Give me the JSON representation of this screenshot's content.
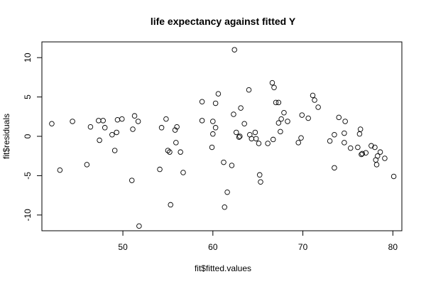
{
  "chart_data": {
    "type": "scatter",
    "title": "life expectancy against fitted Y",
    "xlabel": "fit$fitted.values",
    "ylabel": "fit$residuals",
    "xlim": [
      41,
      81
    ],
    "ylim": [
      -12,
      12
    ],
    "xticks": [
      50,
      60,
      70,
      80
    ],
    "yticks": [
      -10,
      -5,
      0,
      5,
      10
    ],
    "grid": false,
    "legend": "none",
    "marker": "open-circle",
    "points": [
      [
        42.1,
        1.6
      ],
      [
        43.0,
        -4.3
      ],
      [
        44.4,
        1.9
      ],
      [
        46.0,
        -3.6
      ],
      [
        46.4,
        1.2
      ],
      [
        47.3,
        2.0
      ],
      [
        47.4,
        -0.5
      ],
      [
        47.8,
        2.0
      ],
      [
        48.0,
        1.1
      ],
      [
        48.8,
        0.2
      ],
      [
        49.1,
        -1.8
      ],
      [
        49.3,
        0.5
      ],
      [
        49.4,
        2.1
      ],
      [
        49.9,
        2.2
      ],
      [
        51.0,
        -5.6
      ],
      [
        51.1,
        0.9
      ],
      [
        51.3,
        2.6
      ],
      [
        51.7,
        1.9
      ],
      [
        51.8,
        -11.4
      ],
      [
        54.1,
        -4.2
      ],
      [
        54.3,
        1.1
      ],
      [
        54.8,
        2.2
      ],
      [
        55.0,
        -1.8
      ],
      [
        55.2,
        -2.0
      ],
      [
        55.3,
        -8.7
      ],
      [
        55.8,
        0.8
      ],
      [
        55.9,
        -0.8
      ],
      [
        56.0,
        1.2
      ],
      [
        56.4,
        -2.0
      ],
      [
        56.7,
        -4.6
      ],
      [
        58.8,
        4.4
      ],
      [
        58.8,
        2.0
      ],
      [
        59.9,
        -1.4
      ],
      [
        60.0,
        0.3
      ],
      [
        60.0,
        1.9
      ],
      [
        60.3,
        4.2
      ],
      [
        60.3,
        1.1
      ],
      [
        60.6,
        5.4
      ],
      [
        61.2,
        -3.3
      ],
      [
        61.3,
        -9.0
      ],
      [
        61.6,
        -7.1
      ],
      [
        62.1,
        -3.7
      ],
      [
        62.3,
        2.8
      ],
      [
        62.4,
        11.0
      ],
      [
        62.6,
        0.5
      ],
      [
        62.9,
        -0.1
      ],
      [
        63.0,
        0.0
      ],
      [
        63.1,
        3.6
      ],
      [
        63.5,
        1.6
      ],
      [
        64.0,
        5.9
      ],
      [
        64.1,
        0.2
      ],
      [
        64.3,
        -0.3
      ],
      [
        64.7,
        0.5
      ],
      [
        64.8,
        -0.3
      ],
      [
        65.1,
        -0.9
      ],
      [
        65.2,
        -4.9
      ],
      [
        65.3,
        -5.8
      ],
      [
        66.1,
        -0.9
      ],
      [
        66.6,
        6.8
      ],
      [
        66.7,
        -0.4
      ],
      [
        66.8,
        6.2
      ],
      [
        67.0,
        4.3
      ],
      [
        67.3,
        4.3
      ],
      [
        67.3,
        1.7
      ],
      [
        67.6,
        2.2
      ],
      [
        67.9,
        3.0
      ],
      [
        68.3,
        1.9
      ],
      [
        67.5,
        0.6
      ],
      [
        69.5,
        -0.8
      ],
      [
        69.8,
        -0.2
      ],
      [
        69.9,
        2.7
      ],
      [
        70.6,
        2.3
      ],
      [
        71.1,
        5.2
      ],
      [
        71.3,
        4.6
      ],
      [
        71.7,
        3.7
      ],
      [
        73.0,
        -0.6
      ],
      [
        73.5,
        0.2
      ],
      [
        73.5,
        -4.0
      ],
      [
        74.0,
        2.4
      ],
      [
        74.6,
        0.4
      ],
      [
        74.6,
        -0.8
      ],
      [
        74.7,
        1.9
      ],
      [
        75.3,
        -1.5
      ],
      [
        76.1,
        -1.4
      ],
      [
        76.3,
        0.3
      ],
      [
        76.4,
        0.9
      ],
      [
        76.5,
        -2.3
      ],
      [
        76.6,
        -2.2
      ],
      [
        77.0,
        -2.1
      ],
      [
        77.6,
        -1.2
      ],
      [
        78.0,
        -1.4
      ],
      [
        78.1,
        -3.0
      ],
      [
        78.2,
        -3.6
      ],
      [
        78.3,
        -2.5
      ],
      [
        78.6,
        -2.0
      ],
      [
        79.1,
        -2.8
      ],
      [
        80.1,
        -5.1
      ]
    ]
  }
}
